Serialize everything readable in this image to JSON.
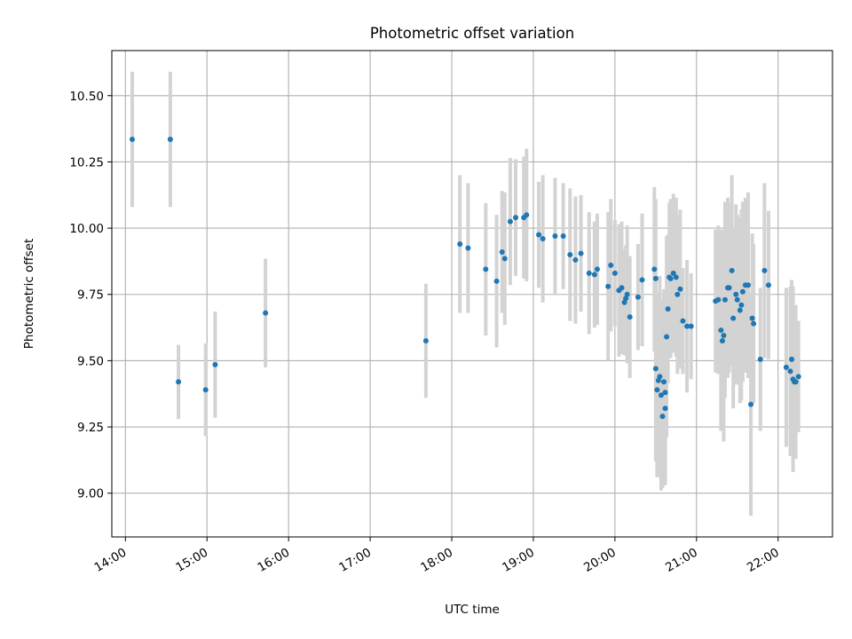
{
  "chart_data": {
    "type": "scatter",
    "title": "Photometric offset variation",
    "xlabel": "UTC time",
    "ylabel": "Photometric offset",
    "x_format": "HH:MM",
    "xlim": [
      "13:50",
      "22:40"
    ],
    "ylim": [
      8.835,
      10.67
    ],
    "yticks": [
      9.0,
      9.25,
      9.5,
      9.75,
      10.0,
      10.25,
      10.5
    ],
    "ytick_labels": [
      "9.00",
      "9.25",
      "9.50",
      "9.75",
      "10.00",
      "10.25",
      "10.50"
    ],
    "xticks": [
      "14:00",
      "15:00",
      "16:00",
      "17:00",
      "18:00",
      "19:00",
      "20:00",
      "21:00",
      "22:00"
    ],
    "grid": true,
    "colors": {
      "point": "#1f77b4",
      "errorbar": "#d3d3d3",
      "grid": "#b0b0b0"
    },
    "points": [
      [
        "14:05",
        10.335,
        0.255
      ],
      [
        "14:33",
        10.335,
        0.255
      ],
      [
        "14:39",
        9.42,
        0.14
      ],
      [
        "14:59",
        9.39,
        0.175
      ],
      [
        "15:06",
        9.485,
        0.2
      ],
      [
        "15:43",
        9.68,
        0.205
      ],
      [
        "17:41",
        9.575,
        0.215
      ],
      [
        "18:06",
        9.94,
        0.26
      ],
      [
        "18:12",
        9.925,
        0.245
      ],
      [
        "18:25",
        9.845,
        0.25
      ],
      [
        "18:33",
        9.8,
        0.25
      ],
      [
        "18:37",
        9.91,
        0.23
      ],
      [
        "18:39",
        9.885,
        0.25
      ],
      [
        "18:43",
        10.025,
        0.24
      ],
      [
        "18:47",
        10.04,
        0.22
      ],
      [
        "18:53",
        10.04,
        0.23
      ],
      [
        "18:55",
        10.05,
        0.25
      ],
      [
        "19:04",
        9.975,
        0.2
      ],
      [
        "19:07",
        9.96,
        0.24
      ],
      [
        "19:16",
        9.97,
        0.22
      ],
      [
        "19:22",
        9.97,
        0.2
      ],
      [
        "19:27",
        9.9,
        0.25
      ],
      [
        "19:31",
        9.88,
        0.24
      ],
      [
        "19:35",
        9.905,
        0.22
      ],
      [
        "19:41",
        9.83,
        0.23
      ],
      [
        "19:45",
        9.825,
        0.2
      ],
      [
        "19:47",
        9.845,
        0.21
      ],
      [
        "19:55",
        9.78,
        0.28
      ],
      [
        "19:57",
        9.86,
        0.25
      ],
      [
        "20:00",
        9.83,
        0.2
      ],
      [
        "20:03",
        9.765,
        0.25
      ],
      [
        "20:05",
        9.775,
        0.25
      ],
      [
        "20:07",
        9.72,
        0.2
      ],
      [
        "20:08",
        9.735,
        0.2
      ],
      [
        "20:09",
        9.75,
        0.26
      ],
      [
        "20:11",
        9.665,
        0.23
      ],
      [
        "20:17",
        9.74,
        0.2
      ],
      [
        "20:20",
        9.805,
        0.25
      ],
      [
        "20:29",
        9.845,
        0.31
      ],
      [
        "20:30",
        9.81,
        0.3
      ],
      [
        "20:30",
        9.47,
        0.35
      ],
      [
        "20:31",
        9.39,
        0.33
      ],
      [
        "20:32",
        9.425,
        0.33
      ],
      [
        "20:33",
        9.44,
        0.38
      ],
      [
        "20:34",
        9.37,
        0.36
      ],
      [
        "20:35",
        9.29,
        0.27
      ],
      [
        "20:36",
        9.42,
        0.35
      ],
      [
        "20:37",
        9.32,
        0.27
      ],
      [
        "20:37",
        9.38,
        0.35
      ],
      [
        "20:38",
        9.59,
        0.38
      ],
      [
        "20:39",
        9.695,
        0.28
      ],
      [
        "20:40",
        9.815,
        0.28
      ],
      [
        "20:41",
        9.81,
        0.3
      ],
      [
        "20:43",
        9.83,
        0.3
      ],
      [
        "20:45",
        9.815,
        0.3
      ],
      [
        "20:46",
        9.75,
        0.3
      ],
      [
        "20:48",
        9.77,
        0.3
      ],
      [
        "20:50",
        9.65,
        0.2
      ],
      [
        "20:53",
        9.63,
        0.25
      ],
      [
        "20:56",
        9.63,
        0.2
      ],
      [
        "21:14",
        9.725,
        0.27
      ],
      [
        "21:16",
        9.73,
        0.28
      ],
      [
        "21:18",
        9.615,
        0.38
      ],
      [
        "21:19",
        9.575,
        0.34
      ],
      [
        "21:20",
        9.595,
        0.4
      ],
      [
        "21:21",
        9.73,
        0.37
      ],
      [
        "21:23",
        9.775,
        0.34
      ],
      [
        "21:24",
        9.775,
        0.32
      ],
      [
        "21:26",
        9.84,
        0.36
      ],
      [
        "21:27",
        9.66,
        0.34
      ],
      [
        "21:29",
        9.75,
        0.34
      ],
      [
        "21:30",
        9.73,
        0.32
      ],
      [
        "21:32",
        9.69,
        0.35
      ],
      [
        "21:33",
        9.71,
        0.36
      ],
      [
        "21:34",
        9.76,
        0.34
      ],
      [
        "21:36",
        9.785,
        0.33
      ],
      [
        "21:38",
        9.785,
        0.35
      ],
      [
        "21:40",
        9.335,
        0.42
      ],
      [
        "21:41",
        9.66,
        0.32
      ],
      [
        "21:42",
        9.64,
        0.3
      ],
      [
        "21:47",
        9.505,
        0.27
      ],
      [
        "21:50",
        9.84,
        0.33
      ],
      [
        "21:53",
        9.785,
        0.28
      ],
      [
        "22:06",
        9.475,
        0.3
      ],
      [
        "22:09",
        9.46,
        0.32
      ],
      [
        "22:10",
        9.505,
        0.3
      ],
      [
        "22:11",
        9.43,
        0.35
      ],
      [
        "22:12",
        9.42,
        0.29
      ],
      [
        "22:13",
        9.42,
        0.29
      ],
      [
        "22:15",
        9.44,
        0.21
      ]
    ]
  }
}
